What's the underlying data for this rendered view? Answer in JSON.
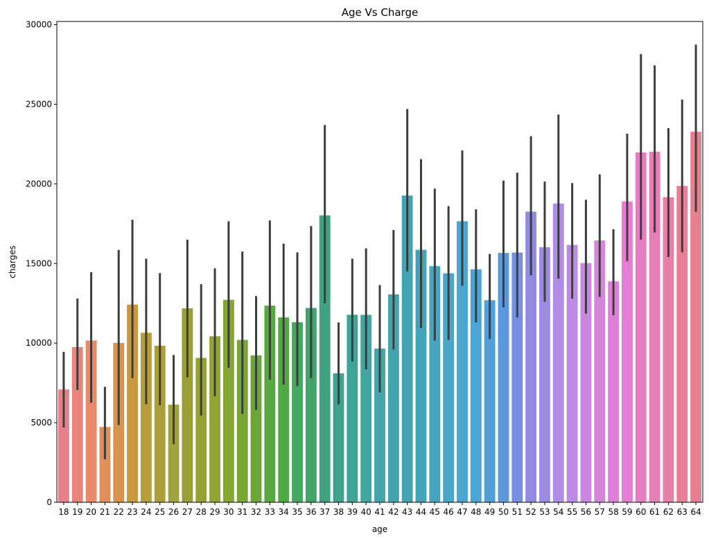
{
  "chart_data": {
    "type": "bar",
    "title": "Age Vs Charge",
    "xlabel": "age",
    "ylabel": "charges",
    "ylim": [
      0,
      30200
    ],
    "yticks": [
      0,
      5000,
      10000,
      15000,
      20000,
      25000,
      30000
    ],
    "grid": false,
    "error_bars": true,
    "categories": [
      "18",
      "19",
      "20",
      "21",
      "22",
      "23",
      "24",
      "25",
      "26",
      "27",
      "28",
      "29",
      "30",
      "31",
      "32",
      "33",
      "34",
      "35",
      "36",
      "37",
      "38",
      "39",
      "40",
      "41",
      "42",
      "43",
      "44",
      "45",
      "46",
      "47",
      "48",
      "49",
      "50",
      "51",
      "52",
      "53",
      "54",
      "55",
      "56",
      "57",
      "58",
      "59",
      "60",
      "61",
      "62",
      "63",
      "64"
    ],
    "values": [
      7085,
      9747,
      10159,
      4731,
      10012,
      12420,
      10648,
      9838,
      6133,
      12184,
      9069,
      10430,
      12719,
      10197,
      9221,
      12351,
      11613,
      11308,
      12204,
      18020,
      8103,
      11778,
      11772,
      9654,
      13061,
      19267,
      15860,
      14830,
      14383,
      17654,
      14633,
      12695,
      15664,
      15682,
      18256,
      16020,
      18766,
      16164,
      15026,
      16448,
      13878,
      18895,
      21980,
      22015,
      19163,
      19871,
      23275
    ],
    "ci_lower": [
      4700,
      7050,
      6250,
      2700,
      4850,
      7800,
      6150,
      6100,
      3650,
      7850,
      5450,
      6650,
      8450,
      5550,
      5800,
      7700,
      7400,
      7300,
      7800,
      12500,
      6150,
      8850,
      8350,
      6900,
      9600,
      14500,
      10950,
      10150,
      10200,
      13600,
      11300,
      10250,
      12250,
      11600,
      14250,
      12600,
      14050,
      12800,
      11850,
      12900,
      11750,
      15150,
      16500,
      16950,
      15400,
      15700,
      18250
    ],
    "ci_upper": [
      9450,
      12800,
      14450,
      7250,
      15850,
      17750,
      15300,
      14400,
      9250,
      16500,
      13700,
      14700,
      17650,
      15750,
      12950,
      17700,
      16250,
      15700,
      17350,
      23700,
      11300,
      15300,
      15950,
      13650,
      17100,
      24700,
      21550,
      19700,
      18600,
      22100,
      18400,
      15600,
      20200,
      20700,
      23000,
      20150,
      24350,
      20050,
      19000,
      20600,
      17150,
      23150,
      28150,
      27450,
      23500,
      25300,
      28750
    ],
    "colors": [
      "#e8808a",
      "#e8847a",
      "#e88a6a",
      "#e08f5a",
      "#d8934c",
      "#c9983f",
      "#b99c3b",
      "#ab9f39",
      "#a0a23b",
      "#999f35",
      "#96a134",
      "#91a435",
      "#85a633",
      "#79a634",
      "#6ba638",
      "#57a83e",
      "#4fa945",
      "#44a85e",
      "#41a56c",
      "#40a380",
      "#3fa28d",
      "#40a397",
      "#41a5a0",
      "#42a6a8",
      "#43a4ad",
      "#43a3b0",
      "#45a3b8",
      "#47a4c0",
      "#48a6c8",
      "#4aa5cf",
      "#4aa5d6",
      "#4fa0d8",
      "#5a99dd",
      "#7590e0",
      "#908ae2",
      "#a08be4",
      "#b18ce4",
      "#bc8ae2",
      "#c888e0",
      "#d685dd",
      "#e07fda",
      "#e87cd5",
      "#e87cc4",
      "#e67db4",
      "#e77ea5",
      "#e87f97",
      "#e7808e"
    ]
  }
}
